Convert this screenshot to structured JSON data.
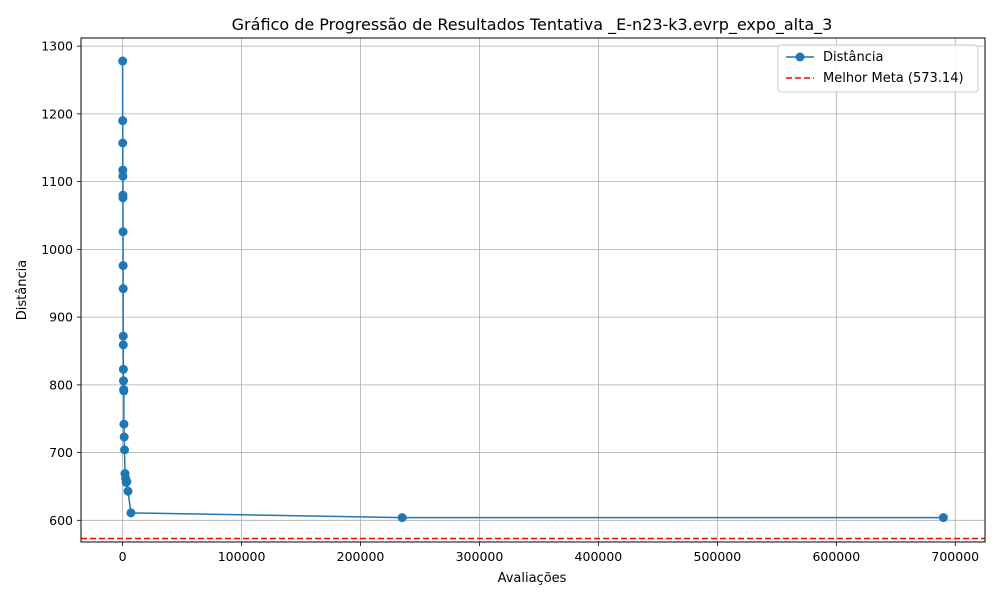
{
  "chart_data": {
    "type": "line",
    "title": "Gráfico de Progressão de Resultados Tentativa _E-n23-k3.evrp_expo_alta_3",
    "xlabel": "Avaliações",
    "ylabel": "Distância",
    "xlim": [
      -35000,
      725000
    ],
    "ylim": [
      568,
      1312
    ],
    "x_ticks": [
      0,
      100000,
      200000,
      300000,
      400000,
      500000,
      600000,
      700000
    ],
    "y_ticks": [
      600,
      700,
      800,
      900,
      1000,
      1100,
      1200,
      1300
    ],
    "grid": true,
    "legend_position": "upper right",
    "series": [
      {
        "name": "Distância",
        "color": "#1f77b4",
        "style": "solid",
        "marker": "circle",
        "x": [
          0,
          50,
          100,
          150,
          200,
          250,
          300,
          350,
          400,
          450,
          500,
          550,
          600,
          700,
          900,
          1000,
          1100,
          1300,
          1600,
          2000,
          2500,
          3000,
          3500,
          4500,
          7000,
          235000,
          690000
        ],
        "y": [
          1278,
          1190,
          1157,
          1117,
          1108,
          1080,
          1076,
          1026,
          976,
          942,
          872,
          859,
          823,
          806,
          793,
          791,
          742,
          723,
          704,
          669,
          662,
          656,
          657,
          643,
          611,
          604,
          604
        ]
      },
      {
        "name": "Melhor Meta (573.14)",
        "color": "#ff0000",
        "style": "dashed",
        "y_constant": 573.14
      }
    ]
  }
}
